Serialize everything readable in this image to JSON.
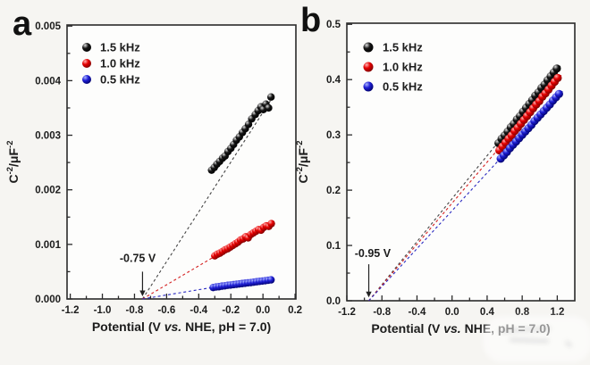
{
  "colors": {
    "background": "#f6f5f2",
    "plot_background": "#fdfdfc",
    "axis": "#2b2b2b",
    "text": "#1c1c1c",
    "series_black": "#000000",
    "series_red": "#e60000",
    "series_blue": "#1a1acc"
  },
  "chart_data": [
    {
      "type": "scatter",
      "panel_label": "a",
      "xlabel_parts": [
        {
          "text": "Potential (V "
        },
        {
          "text": "vs.",
          "italic": true
        },
        {
          "text": " NHE, pH = 7.0)"
        }
      ],
      "ylabel_parts": [
        {
          "text": "C"
        },
        {
          "text": "-2",
          "sup": true
        },
        {
          "text": "/μF"
        },
        {
          "text": "-2",
          "sup": true
        }
      ],
      "xlim": [
        -1.22,
        0.205
      ],
      "ylim": [
        0,
        0.00502
      ],
      "x_ticks": {
        "values": [
          -1.2,
          -1.0,
          -0.8,
          -0.6,
          -0.4,
          -0.2,
          0.0,
          0.2
        ],
        "labels": [
          "-1.2",
          "-1.0",
          "-0.8",
          "-0.6",
          "-0.4",
          "-0.2",
          "0.0",
          "0.2"
        ],
        "minor": [
          -1.1,
          -0.9,
          -0.7,
          -0.5,
          -0.3,
          -0.1,
          0.1
        ]
      },
      "y_ticks": {
        "values": [
          0,
          0.001,
          0.002,
          0.003,
          0.004,
          0.005
        ],
        "labels": [
          "0.000",
          "0.001",
          "0.002",
          "0.003",
          "0.004",
          "0.005"
        ],
        "minor": [
          0.0005,
          0.0015,
          0.0025,
          0.0035,
          0.0045
        ]
      },
      "intercept_v": -0.75,
      "annotation": {
        "text": "-0.75 V",
        "text_x": -0.78,
        "text_y": 0.00068,
        "arrow_x": -0.75,
        "arrow_y_top": 0.0005,
        "arrow_y_tip": 5e-05
      },
      "series": [
        {
          "name": "1.5 kHz",
          "color": "#000000",
          "line_color": "#444444",
          "gradient": [
            "#dedede",
            "#151515",
            "#000000"
          ],
          "points": [
            [
              -0.32,
              0.00236
            ],
            [
              -0.303,
              0.00241
            ],
            [
              -0.287,
              0.00247
            ],
            [
              -0.27,
              0.00252
            ],
            [
              -0.252,
              0.00258
            ],
            [
              -0.236,
              0.00262
            ],
            [
              -0.218,
              0.0027
            ],
            [
              -0.2,
              0.00276
            ],
            [
              -0.183,
              0.00283
            ],
            [
              -0.165,
              0.00291
            ],
            [
              -0.147,
              0.00297
            ],
            [
              -0.128,
              0.00305
            ],
            [
              -0.11,
              0.00312
            ],
            [
              -0.09,
              0.0032
            ],
            [
              -0.07,
              0.0033
            ],
            [
              -0.048,
              0.00338
            ],
            [
              -0.03,
              0.00345
            ],
            [
              -0.013,
              0.00352
            ],
            [
              0.002,
              0.00347
            ],
            [
              0.018,
              0.00357
            ],
            [
              0.035,
              0.0035
            ],
            [
              0.05,
              0.0037
            ]
          ]
        },
        {
          "name": "1.0 kHz",
          "color": "#e60000",
          "line_color": "#d42020",
          "gradient": [
            "#ffb3b3",
            "#e60000",
            "#7a0000"
          ],
          "points": [
            [
              -0.3,
              0.00079
            ],
            [
              -0.284,
              0.00082
            ],
            [
              -0.268,
              0.00084
            ],
            [
              -0.252,
              0.00087
            ],
            [
              -0.236,
              0.0009
            ],
            [
              -0.22,
              0.00092
            ],
            [
              -0.204,
              0.00095
            ],
            [
              -0.188,
              0.00098
            ],
            [
              -0.172,
              0.00101
            ],
            [
              -0.156,
              0.00104
            ],
            [
              -0.14,
              0.00108
            ],
            [
              -0.124,
              0.0011
            ],
            [
              -0.108,
              0.00114
            ],
            [
              -0.092,
              0.00112
            ],
            [
              -0.076,
              0.00118
            ],
            [
              -0.06,
              0.00121
            ],
            [
              -0.044,
              0.00124
            ],
            [
              -0.028,
              0.00127
            ],
            [
              -0.012,
              0.00126
            ],
            [
              0.004,
              0.00131
            ],
            [
              0.02,
              0.00134
            ],
            [
              0.036,
              0.00133
            ],
            [
              0.052,
              0.00138
            ]
          ]
        },
        {
          "name": "0.5 kHz",
          "color": "#1a1acc",
          "line_color": "#2a2ac0",
          "gradient": [
            "#aab4ff",
            "#1f1fd6",
            "#000066"
          ],
          "points": [
            [
              -0.31,
              0.00021
            ],
            [
              -0.292,
              0.00022
            ],
            [
              -0.274,
              0.000225
            ],
            [
              -0.256,
              0.000235
            ],
            [
              -0.238,
              0.00024
            ],
            [
              -0.22,
              0.00025
            ],
            [
              -0.202,
              0.000255
            ],
            [
              -0.184,
              0.000262
            ],
            [
              -0.166,
              0.000268
            ],
            [
              -0.148,
              0.000275
            ],
            [
              -0.13,
              0.000282
            ],
            [
              -0.112,
              0.000288
            ],
            [
              -0.094,
              0.000295
            ],
            [
              -0.076,
              0.0003
            ],
            [
              -0.058,
              0.000308
            ],
            [
              -0.04,
              0.000315
            ],
            [
              -0.022,
              0.000322
            ],
            [
              -0.004,
              0.000328
            ],
            [
              0.014,
              0.000335
            ],
            [
              0.032,
              0.000342
            ],
            [
              0.05,
              0.00035
            ]
          ]
        }
      ]
    },
    {
      "type": "scatter",
      "panel_label": "b",
      "xlabel_parts": [
        {
          "text": "Potential (V "
        },
        {
          "text": "vs.",
          "italic": true
        },
        {
          "text": " NHE, pH = 7.0)"
        }
      ],
      "ylabel_parts": [
        {
          "text": "C"
        },
        {
          "text": "-2",
          "sup": true
        },
        {
          "text": "/μF"
        },
        {
          "text": "-2",
          "sup": true
        }
      ],
      "xlim": [
        -1.2,
        1.4
      ],
      "ylim": [
        0,
        0.502
      ],
      "x_ticks": {
        "values": [
          -1.2,
          -0.8,
          -0.4,
          0.0,
          0.4,
          0.8,
          1.2
        ],
        "labels": [
          "-1.2",
          "-0.8",
          "-0.4",
          "0.0",
          "0.4",
          "0.8",
          "1.2"
        ],
        "minor": [
          -1.0,
          -0.6,
          -0.2,
          0.2,
          0.6,
          1.0
        ]
      },
      "y_ticks": {
        "values": [
          0,
          0.1,
          0.2,
          0.3,
          0.4,
          0.5
        ],
        "labels": [
          "0.0",
          "0.1",
          "0.2",
          "0.3",
          "0.4",
          "0.5"
        ],
        "minor": [
          0.05,
          0.15,
          0.25,
          0.35,
          0.45
        ]
      },
      "intercept_v": -0.95,
      "annotation": {
        "text": "-0.95 V",
        "text_x": -0.905,
        "text_y": 0.079,
        "arrow_x": -0.95,
        "arrow_y_top": 0.066,
        "arrow_y_tip": 0.006
      },
      "series": [
        {
          "name": "1.5 kHz",
          "color": "#000000",
          "line_color": "#444444",
          "gradient": [
            "#dedede",
            "#151515",
            "#000000"
          ],
          "points": [
            [
              0.53,
              0.285
            ],
            [
              0.565,
              0.293
            ],
            [
              0.6,
              0.299
            ],
            [
              0.635,
              0.306
            ],
            [
              0.67,
              0.314
            ],
            [
              0.705,
              0.32
            ],
            [
              0.74,
              0.328
            ],
            [
              0.775,
              0.334
            ],
            [
              0.81,
              0.342
            ],
            [
              0.845,
              0.349
            ],
            [
              0.88,
              0.356
            ],
            [
              0.915,
              0.363
            ],
            [
              0.95,
              0.371
            ],
            [
              0.985,
              0.377
            ],
            [
              1.02,
              0.385
            ],
            [
              1.055,
              0.391
            ],
            [
              1.09,
              0.399
            ],
            [
              1.125,
              0.406
            ],
            [
              1.16,
              0.413
            ],
            [
              1.195,
              0.42
            ]
          ]
        },
        {
          "name": "1.0 kHz",
          "color": "#e60000",
          "line_color": "#d42020",
          "gradient": [
            "#ffb3b3",
            "#e60000",
            "#7a0000"
          ],
          "points": [
            [
              0.54,
              0.272
            ],
            [
              0.575,
              0.279
            ],
            [
              0.61,
              0.286
            ],
            [
              0.645,
              0.293
            ],
            [
              0.68,
              0.299
            ],
            [
              0.715,
              0.307
            ],
            [
              0.75,
              0.313
            ],
            [
              0.785,
              0.32
            ],
            [
              0.82,
              0.327
            ],
            [
              0.855,
              0.334
            ],
            [
              0.89,
              0.341
            ],
            [
              0.925,
              0.348
            ],
            [
              0.96,
              0.355
            ],
            [
              0.995,
              0.361
            ],
            [
              1.03,
              0.369
            ],
            [
              1.065,
              0.375
            ],
            [
              1.1,
              0.382
            ],
            [
              1.135,
              0.389
            ],
            [
              1.17,
              0.396
            ],
            [
              1.205,
              0.403
            ]
          ]
        },
        {
          "name": "0.5 kHz",
          "color": "#1a1acc",
          "line_color": "#2a2ac0",
          "gradient": [
            "#aab4ff",
            "#1f1fd6",
            "#000066"
          ],
          "points": [
            [
              0.555,
              0.257
            ],
            [
              0.59,
              0.263
            ],
            [
              0.625,
              0.269
            ],
            [
              0.66,
              0.276
            ],
            [
              0.695,
              0.282
            ],
            [
              0.73,
              0.288
            ],
            [
              0.765,
              0.294
            ],
            [
              0.8,
              0.3
            ],
            [
              0.835,
              0.306
            ],
            [
              0.87,
              0.312
            ],
            [
              0.905,
              0.318
            ],
            [
              0.94,
              0.325
            ],
            [
              0.975,
              0.331
            ],
            [
              1.01,
              0.337
            ],
            [
              1.045,
              0.343
            ],
            [
              1.08,
              0.349
            ],
            [
              1.115,
              0.355
            ],
            [
              1.15,
              0.362
            ],
            [
              1.185,
              0.368
            ],
            [
              1.22,
              0.374
            ]
          ]
        }
      ]
    }
  ]
}
